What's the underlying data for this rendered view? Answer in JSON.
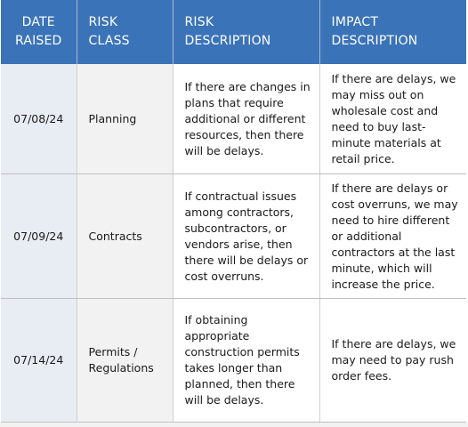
{
  "header": {
    "date_raised": [
      "DATE",
      "RAISED"
    ],
    "risk_class": [
      "RISK",
      "CLASS"
    ],
    "risk_description": [
      "RISK",
      "DESCRIPTION"
    ],
    "impact_description": [
      "IMPACT",
      "DESCRIPTION"
    ]
  },
  "rows": [
    {
      "date": "07/08/24",
      "risk_class": [
        "Planning"
      ],
      "risk_description": [
        "If there are changes in",
        "plans that require",
        "additional or different",
        "resources, then there",
        "will be delays."
      ],
      "impact_description": [
        "If there are delays, we",
        "may miss out on",
        "wholesale cost and",
        "need to buy last-",
        "minute materials at",
        "retail price."
      ]
    },
    {
      "date": "07/09/24",
      "risk_class": [
        "Contracts"
      ],
      "risk_description": [
        "If contractual issues",
        "among contractors,",
        "subcontractors, or",
        "vendors arise, then",
        "there will be delays or",
        "cost overruns."
      ],
      "impact_description": [
        "If there are delays or",
        "cost overruns, we may",
        "need to hire different",
        "or additional",
        "contractors at the last",
        "minute, which will",
        "increase the price."
      ]
    },
    {
      "date": "07/14/24",
      "risk_class": [
        "Permits /",
        "Regulations"
      ],
      "risk_description": [
        "If obtaining",
        "appropriate",
        "construction permits",
        "takes longer than",
        "planned, then there",
        "will be delays."
      ],
      "impact_description": [
        "If there are delays, we",
        "may need to pay rush",
        "order fees."
      ]
    }
  ]
}
